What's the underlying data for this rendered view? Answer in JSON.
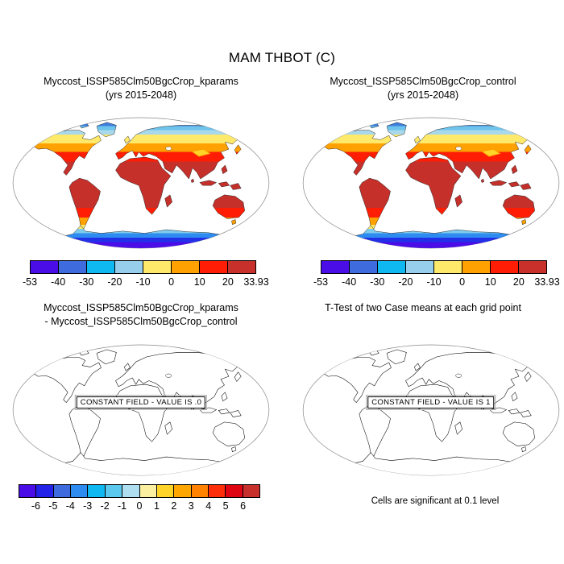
{
  "page_title": "MAM THBOT (C)",
  "panels": {
    "top_left": {
      "title": "Myccost_ISSP585Clm50BgcCrop_kparams",
      "subtitle": "(yrs 2015-2048)"
    },
    "top_right": {
      "title": "Myccost_ISSP585Clm50BgcCrop_control",
      "subtitle": "(yrs 2015-2048)"
    },
    "bottom_left": {
      "title": "Myccost_ISSP585Clm50BgcCrop_kparams",
      "subtitle": "- Myccost_ISSP585Clm50BgcCrop_control",
      "constant_field_label": "CONSTANT FIELD - VALUE IS .0"
    },
    "bottom_right": {
      "title": "T-Test of two Case means at each grid point",
      "constant_field_label": "CONSTANT FIELD - VALUE IS 1",
      "caption": "Cells are significant at 0.1 level"
    }
  },
  "colorbars": {
    "temperature": {
      "labels": [
        "-53",
        "-40",
        "-30",
        "-20",
        "-10",
        "0",
        "10",
        "20",
        "33.93"
      ],
      "colors": [
        "#4A0DE8",
        "#3E6BDE",
        "#0FB8F1",
        "#96CEEC",
        "#FFE96A",
        "#FFA100",
        "#FF1E05",
        "#C8302C"
      ]
    },
    "difference": {
      "labels": [
        "-6",
        "-5",
        "-4",
        "-3",
        "-2",
        "-1",
        "0",
        "1",
        "2",
        "3",
        "4",
        "5",
        "6"
      ],
      "colors": [
        "#4A0DE8",
        "#2222E8",
        "#3E6BDE",
        "#2E8CF0",
        "#0FB8F1",
        "#5BC8EE",
        "#AEDEF0",
        "#FAF0A0",
        "#FFD428",
        "#FFA600",
        "#FF8200",
        "#FF2E0A",
        "#E00512",
        "#C8302C"
      ]
    }
  },
  "chart_data": [
    {
      "type": "heatmap",
      "subtype": "filled-contour-world-map",
      "projection": "robinson",
      "title": "Myccost_ISSP585Clm50BgcCrop_kparams",
      "subtitle": "(yrs 2015-2048)",
      "variable": "THBOT",
      "season": "MAM",
      "units": "C",
      "levels": [
        -53,
        -40,
        -30,
        -20,
        -10,
        0,
        10,
        20,
        33.93
      ],
      "min": -53,
      "max": 33.93,
      "palette": [
        "#4A0DE8",
        "#3E6BDE",
        "#0FB8F1",
        "#96CEEC",
        "#FFE96A",
        "#FFA100",
        "#FF1E05",
        "#C8302C"
      ],
      "legend_position": "below",
      "notes": "land-only fill; tropics dark red, high northern latitudes yellow-to-blue, Antarctica blue-violet"
    },
    {
      "type": "heatmap",
      "subtype": "filled-contour-world-map",
      "projection": "robinson",
      "title": "Myccost_ISSP585Clm50BgcCrop_control",
      "subtitle": "(yrs 2015-2048)",
      "variable": "THBOT",
      "season": "MAM",
      "units": "C",
      "levels": [
        -53,
        -40,
        -30,
        -20,
        -10,
        0,
        10,
        20,
        33.93
      ],
      "min": -53,
      "max": 33.93,
      "palette": [
        "#4A0DE8",
        "#3E6BDE",
        "#0FB8F1",
        "#96CEEC",
        "#FFE96A",
        "#FFA100",
        "#FF1E05",
        "#C8302C"
      ],
      "legend_position": "below",
      "notes": "visually identical to kparams panel"
    },
    {
      "type": "heatmap",
      "subtype": "outline-world-map",
      "projection": "robinson",
      "title": "Myccost_ISSP585Clm50BgcCrop_kparams - Myccost_ISSP585Clm50BgcCrop_control",
      "constant_field_value": 0,
      "annotation": "CONSTANT FIELD - VALUE IS .0",
      "levels": [
        -6,
        -5,
        -4,
        -3,
        -2,
        -1,
        0,
        1,
        2,
        3,
        4,
        5,
        6
      ],
      "palette": [
        "#4A0DE8",
        "#2222E8",
        "#3E6BDE",
        "#2E8CF0",
        "#0FB8F1",
        "#5BC8EE",
        "#AEDEF0",
        "#FAF0A0",
        "#FFD428",
        "#FFA600",
        "#FF8200",
        "#FF2E0A",
        "#E00512",
        "#C8302C"
      ],
      "legend_position": "below"
    },
    {
      "type": "heatmap",
      "subtype": "outline-world-map",
      "projection": "robinson",
      "title": "T-Test of two Case means at each grid point",
      "constant_field_value": 1,
      "annotation": "CONSTANT FIELD - VALUE IS 1",
      "caption": "Cells are significant at 0.1 level",
      "legend_position": "none"
    }
  ]
}
